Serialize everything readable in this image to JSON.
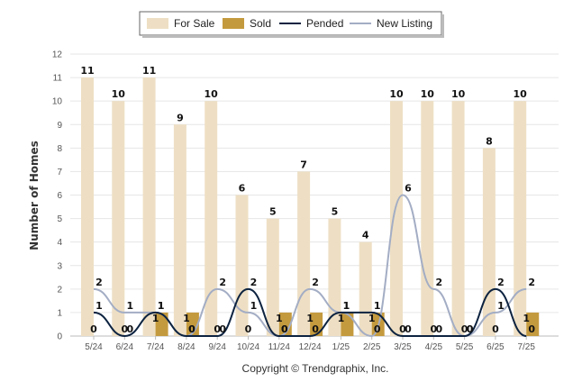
{
  "chart_data": {
    "type": "bar",
    "categories": [
      "5/24",
      "6/24",
      "7/24",
      "8/24",
      "9/24",
      "10/24",
      "11/24",
      "12/24",
      "1/25",
      "2/25",
      "3/25",
      "4/25",
      "5/25",
      "6/25",
      "7/25"
    ],
    "series": [
      {
        "name": "For Sale",
        "kind": "bar",
        "color": "#eedfc4",
        "values": [
          11,
          10,
          11,
          9,
          10,
          6,
          5,
          7,
          5,
          4,
          10,
          10,
          10,
          8,
          10
        ]
      },
      {
        "name": "Sold",
        "kind": "bar",
        "color": "#c49a3e",
        "values": [
          0,
          0,
          1,
          1,
          0,
          0,
          1,
          1,
          1,
          1,
          0,
          0,
          0,
          0,
          1
        ]
      },
      {
        "name": "Pended",
        "kind": "line",
        "color": "#0d2340",
        "values": [
          1,
          0,
          1,
          0,
          0,
          2,
          0,
          0,
          1,
          1,
          0,
          0,
          0,
          2,
          0
        ]
      },
      {
        "name": "New Listing",
        "kind": "line",
        "color": "#a3adc4",
        "values": [
          2,
          1,
          1,
          0,
          2,
          1,
          0,
          2,
          1,
          0,
          6,
          2,
          0,
          1,
          2
        ]
      }
    ],
    "ylabel": "Number of Homes",
    "ylim": [
      0,
      12
    ],
    "yticks": [
      0,
      1,
      2,
      3,
      4,
      5,
      6,
      7,
      8,
      9,
      10,
      11,
      12
    ],
    "grid": true,
    "legend": "top-center"
  },
  "footer": {
    "copyright": "Copyright © Trendgraphix, Inc."
  }
}
